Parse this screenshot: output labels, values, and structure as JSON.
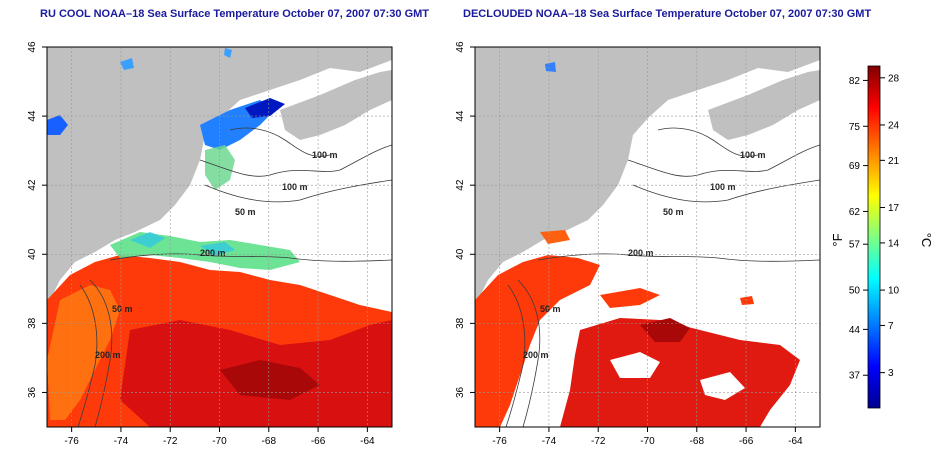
{
  "maps": [
    {
      "title": "RU COOL NOAA–18 Sea Surface Temperature October 07, 2007 07:30 GMT",
      "variant": "raw",
      "x_ticks": [
        "-76",
        "-74",
        "-72",
        "-70",
        "-68",
        "-66",
        "-64"
      ],
      "y_ticks": [
        "36",
        "38",
        "40",
        "42",
        "44",
        "46"
      ],
      "contour_labels": [
        "100 m",
        "100 m",
        "50 m",
        "200 m",
        "50 m",
        "200 m"
      ]
    },
    {
      "title": "DECLOUDED NOAA–18 Sea Surface Temperature October 07, 2007 07:30 GMT",
      "variant": "declouded",
      "x_ticks": [
        "-76",
        "-74",
        "-72",
        "-70",
        "-68",
        "-66",
        "-64"
      ],
      "y_ticks": [
        "36",
        "38",
        "40",
        "42",
        "44",
        "46"
      ],
      "contour_labels": [
        "100 m",
        "100 m",
        "50 m",
        "200 m",
        "50 m",
        "200 m"
      ]
    }
  ],
  "colorbar": {
    "fahrenheit_label": "°F",
    "celsius_label": "°C",
    "fahrenheit_ticks": [
      "82",
      "75",
      "69",
      "62",
      "57",
      "50",
      "44",
      "37"
    ],
    "celsius_ticks": [
      "28",
      "24",
      "21",
      "17",
      "14",
      "10",
      "7",
      "3"
    ],
    "celsius_range": [
      0,
      29
    ],
    "colors": [
      "#00008f",
      "#0000ff",
      "#0080ff",
      "#00ffff",
      "#80ff80",
      "#ffff00",
      "#ff8000",
      "#ff0000",
      "#800000"
    ]
  },
  "colors": {
    "land": "#c0c0c0",
    "cloud": "#ffffff",
    "title": "#1a1a9e",
    "contour": "#3a3a3a"
  }
}
